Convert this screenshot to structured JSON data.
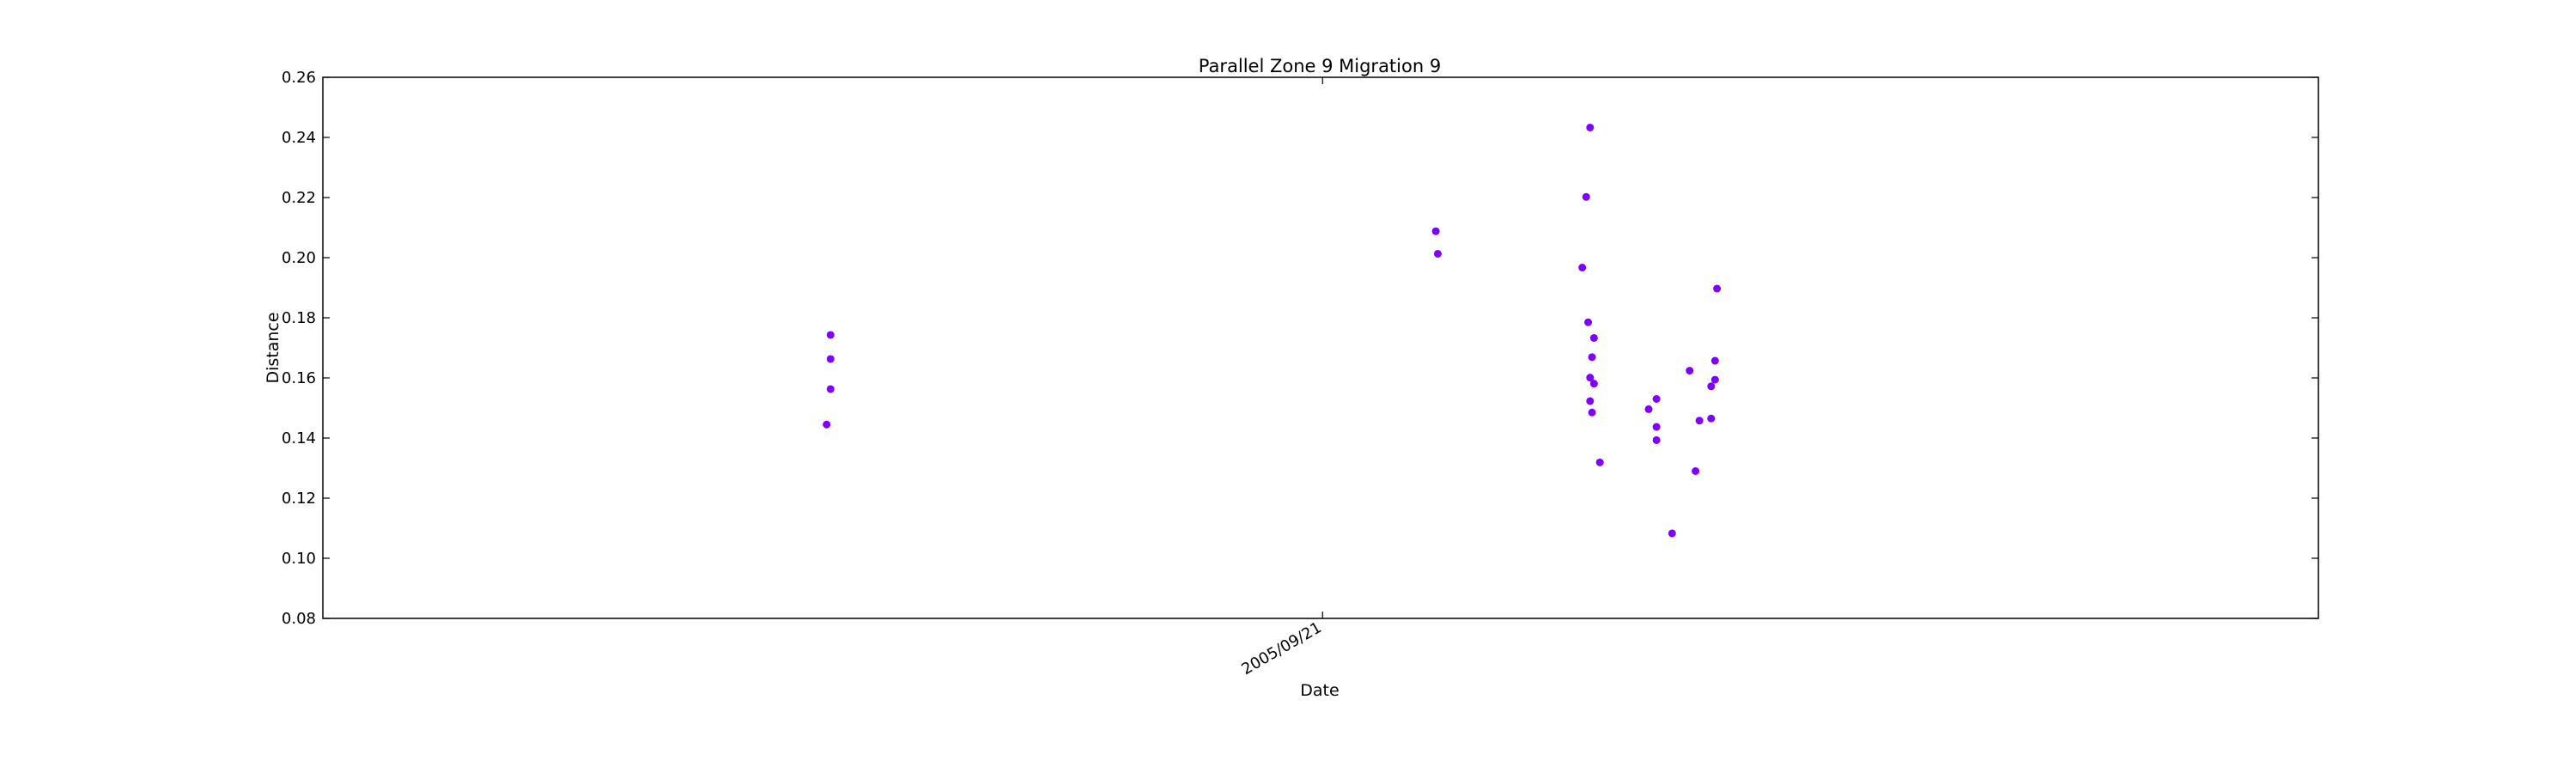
{
  "chart_data": {
    "type": "scatter",
    "title": "Parallel Zone 9 Migration 9",
    "xlabel": "Date",
    "ylabel": "Distance",
    "ylim": [
      0.08,
      0.26
    ],
    "yticks": [
      "0.08",
      "0.10",
      "0.12",
      "0.14",
      "0.16",
      "0.18",
      "0.20",
      "0.22",
      "0.24",
      "0.26"
    ],
    "xlim": [
      "2004/04/27",
      "2007/02/13"
    ],
    "xticks": [
      {
        "value": "2005/09/21",
        "label": "2005/09/21"
      }
    ],
    "grid": false,
    "marker_color": "#8000ff",
    "series": [
      {
        "points": [
          {
            "x": "2005/01/10",
            "y": 0.1445
          },
          {
            "x": "2005/01/12",
            "y": 0.1563
          },
          {
            "x": "2005/01/12",
            "y": 0.1663
          },
          {
            "x": "2005/01/12",
            "y": 0.1743
          },
          {
            "x": "2005/11/18",
            "y": 0.2088
          },
          {
            "x": "2005/11/19",
            "y": 0.2013
          },
          {
            "x": "2006/02/01",
            "y": 0.1967
          },
          {
            "x": "2006/02/03",
            "y": 0.2202
          },
          {
            "x": "2006/02/04",
            "y": 0.1785
          },
          {
            "x": "2006/02/05",
            "y": 0.2433
          },
          {
            "x": "2006/02/05",
            "y": 0.1601
          },
          {
            "x": "2006/02/05",
            "y": 0.1523
          },
          {
            "x": "2006/02/06",
            "y": 0.1669
          },
          {
            "x": "2006/02/06",
            "y": 0.1485
          },
          {
            "x": "2006/02/07",
            "y": 0.1733
          },
          {
            "x": "2006/02/07",
            "y": 0.1581
          },
          {
            "x": "2006/02/10",
            "y": 0.1319
          },
          {
            "x": "2006/03/07",
            "y": 0.1496
          },
          {
            "x": "2006/03/11",
            "y": 0.153
          },
          {
            "x": "2006/03/11",
            "y": 0.1437
          },
          {
            "x": "2006/03/11",
            "y": 0.1393
          },
          {
            "x": "2006/03/19",
            "y": 0.1083
          },
          {
            "x": "2006/03/28",
            "y": 0.1624
          },
          {
            "x": "2006/03/31",
            "y": 0.129
          },
          {
            "x": "2006/04/02",
            "y": 0.1458
          },
          {
            "x": "2006/04/08",
            "y": 0.1572
          },
          {
            "x": "2006/04/08",
            "y": 0.1465
          },
          {
            "x": "2006/04/10",
            "y": 0.1594
          },
          {
            "x": "2006/04/10",
            "y": 0.1657
          },
          {
            "x": "2006/04/11",
            "y": 0.1897
          }
        ]
      }
    ]
  }
}
